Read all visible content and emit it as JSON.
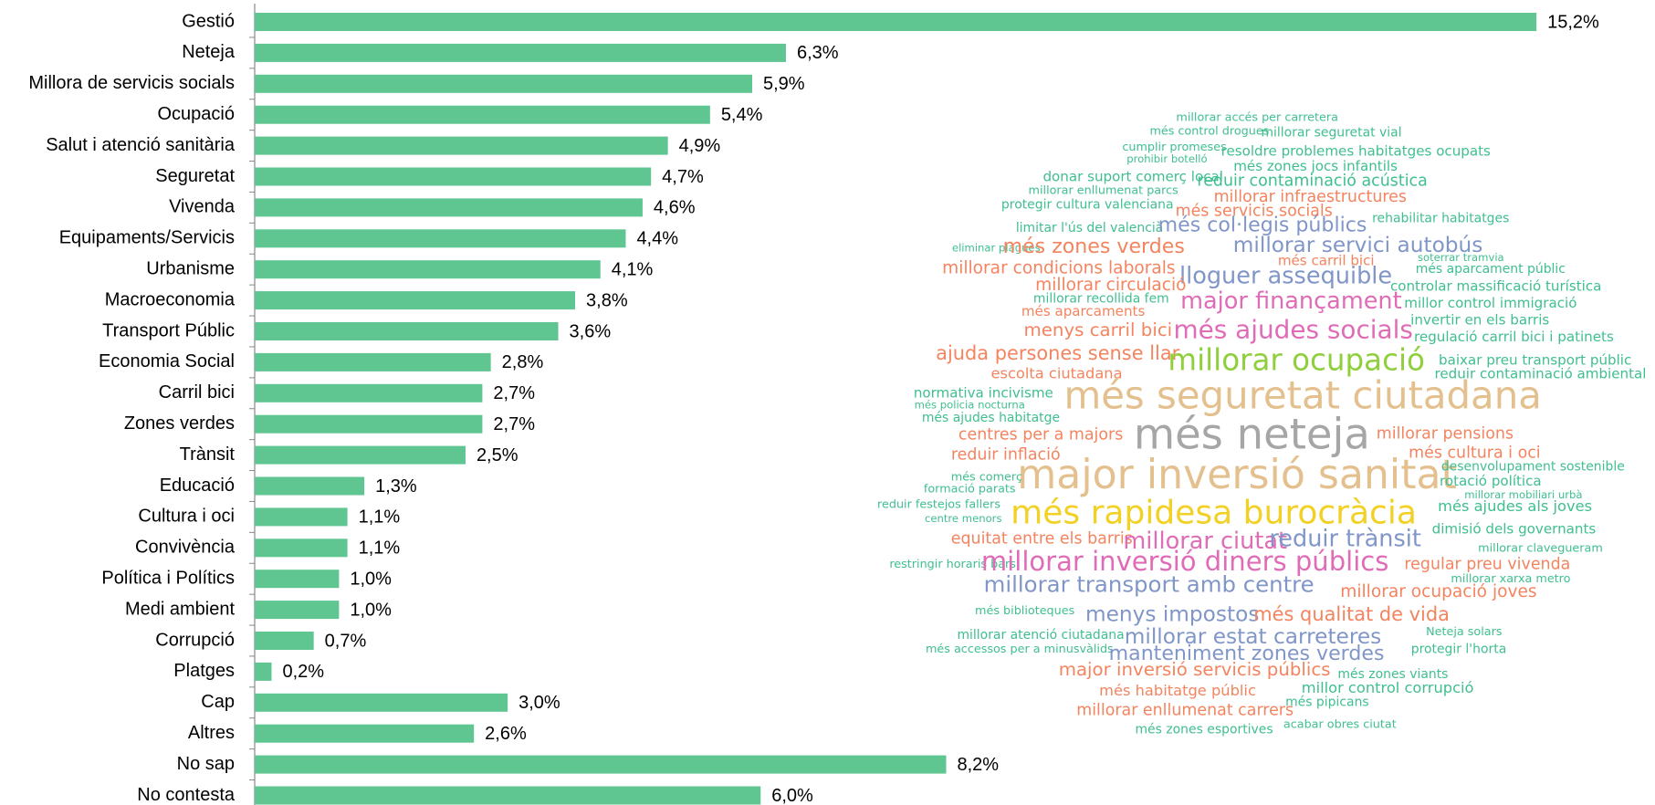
{
  "chart_data": {
    "type": "bar",
    "orientation": "horizontal",
    "color": "#5fc591",
    "categories": [
      "Gestió",
      "Neteja",
      "Millora de servicis socials",
      "Ocupació",
      "Salut i atenció sanitària",
      "Seguretat",
      "Vivenda",
      "Equipaments/Servicis",
      "Urbanisme",
      "Macroeconomia",
      "Transport Públic",
      "Economia Social",
      "Carril bici",
      "Zones verdes",
      "Trànsit",
      "Educació",
      "Cultura i oci",
      "Convivència",
      "Política i Polítics",
      "Medi ambient",
      "Corrupció",
      "Platges",
      "Cap",
      "Altres",
      "No sap",
      "No contesta"
    ],
    "values": [
      15.2,
      6.3,
      5.9,
      5.4,
      4.9,
      4.7,
      4.6,
      4.4,
      4.1,
      3.8,
      3.6,
      2.8,
      2.7,
      2.7,
      2.5,
      1.3,
      1.1,
      1.1,
      1.0,
      1.0,
      0.7,
      0.2,
      3.0,
      2.6,
      8.2,
      6.0
    ],
    "value_labels": [
      "15,2%",
      "6,3%",
      "5,9%",
      "5,4%",
      "4,9%",
      "4,7%",
      "4,6%",
      "4,4%",
      "4,1%",
      "3,8%",
      "3,6%",
      "2,8%",
      "2,7%",
      "2,7%",
      "2,5%",
      "1,3%",
      "1,1%",
      "1,1%",
      "1,0%",
      "1,0%",
      "0,7%",
      "0,2%",
      "3,0%",
      "2,6%",
      "8,2%",
      "6,0%"
    ],
    "xlim": [
      0,
      16
    ]
  },
  "word_cloud": {
    "words": [
      {
        "text": "millorar accés per carretera",
        "color": "#3fbf8f"
      },
      {
        "text": "més control drogues",
        "color": "#3fbf8f"
      },
      {
        "text": "millorar seguretat vial",
        "color": "#3fbf8f"
      },
      {
        "text": "cumplir promeses",
        "color": "#3fbf8f"
      },
      {
        "text": "prohibir botelló",
        "color": "#3fbf8f"
      },
      {
        "text": "resoldre problemes habitatges ocupats",
        "color": "#3fbf8f"
      },
      {
        "text": "més zones jocs infantils",
        "color": "#3fbf8f"
      },
      {
        "text": "donar suport comerç local",
        "color": "#3fbf8f"
      },
      {
        "text": "reduir contaminació acústica",
        "color": "#3fbf8f"
      },
      {
        "text": "millorar enllumenat parcs",
        "color": "#3fbf8f"
      },
      {
        "text": "millorar infraestructures",
        "color": "#f4845f"
      },
      {
        "text": "protegir cultura valenciana",
        "color": "#3fbf8f"
      },
      {
        "text": "més servicis socials",
        "color": "#f4845f"
      },
      {
        "text": "rehabilitar habitatges",
        "color": "#3fbf8f"
      },
      {
        "text": "limitar l'ús del valencià",
        "color": "#3fbf8f"
      },
      {
        "text": "més col·legis públics",
        "color": "#8096c8"
      },
      {
        "text": "eliminar plagues",
        "color": "#3fbf8f"
      },
      {
        "text": "més zones verdes",
        "color": "#f4845f"
      },
      {
        "text": "millorar servici autobús",
        "color": "#8096c8"
      },
      {
        "text": "més carril bici",
        "color": "#f4845f"
      },
      {
        "text": "soterrar tramvia",
        "color": "#3fbf8f"
      },
      {
        "text": "millorar condicions laborals",
        "color": "#f4845f"
      },
      {
        "text": "més aparcament públic",
        "color": "#3fbf8f"
      },
      {
        "text": "lloguer assequible",
        "color": "#8096c8"
      },
      {
        "text": "millorar circulació",
        "color": "#f4845f"
      },
      {
        "text": "controlar massificació turística",
        "color": "#3fbf8f"
      },
      {
        "text": "millorar recollida fem",
        "color": "#3fbf8f"
      },
      {
        "text": "major finançament",
        "color": "#e06cb8"
      },
      {
        "text": "millor control immigració",
        "color": "#3fbf8f"
      },
      {
        "text": "més aparcaments",
        "color": "#f4845f"
      },
      {
        "text": "invertir en els barris",
        "color": "#3fbf8f"
      },
      {
        "text": "menys carril bici",
        "color": "#f4845f"
      },
      {
        "text": "més ajudes socials",
        "color": "#e06cb8"
      },
      {
        "text": "regulació carril bici i patinets",
        "color": "#3fbf8f"
      },
      {
        "text": "ajuda persones sense llar",
        "color": "#f4845f"
      },
      {
        "text": "millorar ocupació",
        "color": "#8fcf3c"
      },
      {
        "text": "baixar preu transport públic",
        "color": "#3fbf8f"
      },
      {
        "text": "escolta ciutadana",
        "color": "#f4845f"
      },
      {
        "text": "reduir contaminació ambiental",
        "color": "#3fbf8f"
      },
      {
        "text": "normativa incivisme",
        "color": "#3fbf8f"
      },
      {
        "text": "més seguretat ciutadana",
        "color": "#e3c08e"
      },
      {
        "text": "més policia nocturna",
        "color": "#3fbf8f"
      },
      {
        "text": "més ajudes habitatge",
        "color": "#3fbf8f"
      },
      {
        "text": "més neteja",
        "color": "#a6a6a6"
      },
      {
        "text": "centres per a majors",
        "color": "#f4845f"
      },
      {
        "text": "millorar pensions",
        "color": "#f4845f"
      },
      {
        "text": "reduir inflació",
        "color": "#f4845f"
      },
      {
        "text": "més cultura i oci",
        "color": "#f4845f"
      },
      {
        "text": "major inversió sanitat",
        "color": "#e3c08e"
      },
      {
        "text": "desenvolupament sostenible",
        "color": "#3fbf8f"
      },
      {
        "text": "més comerç",
        "color": "#3fbf8f"
      },
      {
        "text": "rotació política",
        "color": "#3fbf8f"
      },
      {
        "text": "formació parats",
        "color": "#3fbf8f"
      },
      {
        "text": "millorar mobiliari urbà",
        "color": "#3fbf8f"
      },
      {
        "text": "reduir festejos fallers",
        "color": "#3fbf8f"
      },
      {
        "text": "més ajudes als joves",
        "color": "#3fbf8f"
      },
      {
        "text": "centre menors",
        "color": "#3fbf8f"
      },
      {
        "text": "més rapidesa burocràcia",
        "color": "#f2d024"
      },
      {
        "text": "dimisió dels governants",
        "color": "#3fbf8f"
      },
      {
        "text": "equitat entre els barris",
        "color": "#f4845f"
      },
      {
        "text": "millorar ciutat",
        "color": "#e06cb8"
      },
      {
        "text": "reduir trànsit",
        "color": "#8096c8"
      },
      {
        "text": "millorar clavegueram",
        "color": "#3fbf8f"
      },
      {
        "text": "restringir horaris bars",
        "color": "#3fbf8f"
      },
      {
        "text": "millorar inversió diners públics",
        "color": "#e06cb8"
      },
      {
        "text": "regular preu vivenda",
        "color": "#f4845f"
      },
      {
        "text": "millorar xarxa metro",
        "color": "#3fbf8f"
      },
      {
        "text": "millorar transport amb centre",
        "color": "#8096c8"
      },
      {
        "text": "millorar ocupació joves",
        "color": "#f4845f"
      },
      {
        "text": "més biblioteques",
        "color": "#3fbf8f"
      },
      {
        "text": "menys impostos",
        "color": "#8096c8"
      },
      {
        "text": "més qualitat de vida",
        "color": "#f4845f"
      },
      {
        "text": "millorar atenció ciutadana",
        "color": "#3fbf8f"
      },
      {
        "text": "millorar estat carreteres",
        "color": "#8096c8"
      },
      {
        "text": "Neteja solars",
        "color": "#3fbf8f"
      },
      {
        "text": "més accessos per a minusvàlids",
        "color": "#3fbf8f"
      },
      {
        "text": "manteniment zones verdes",
        "color": "#8096c8"
      },
      {
        "text": "protegir l'horta",
        "color": "#3fbf8f"
      },
      {
        "text": "major inversió servicis públics",
        "color": "#f4845f"
      },
      {
        "text": "més zones viants",
        "color": "#3fbf8f"
      },
      {
        "text": "millor control corrupció",
        "color": "#3fbf8f"
      },
      {
        "text": "més habitatge públic",
        "color": "#f4845f"
      },
      {
        "text": "més pipicans",
        "color": "#3fbf8f"
      },
      {
        "text": "millorar enllumenat carrers",
        "color": "#f4845f"
      },
      {
        "text": "acabar obres ciutat",
        "color": "#3fbf8f"
      },
      {
        "text": "més zones esportives",
        "color": "#3fbf8f"
      }
    ]
  }
}
